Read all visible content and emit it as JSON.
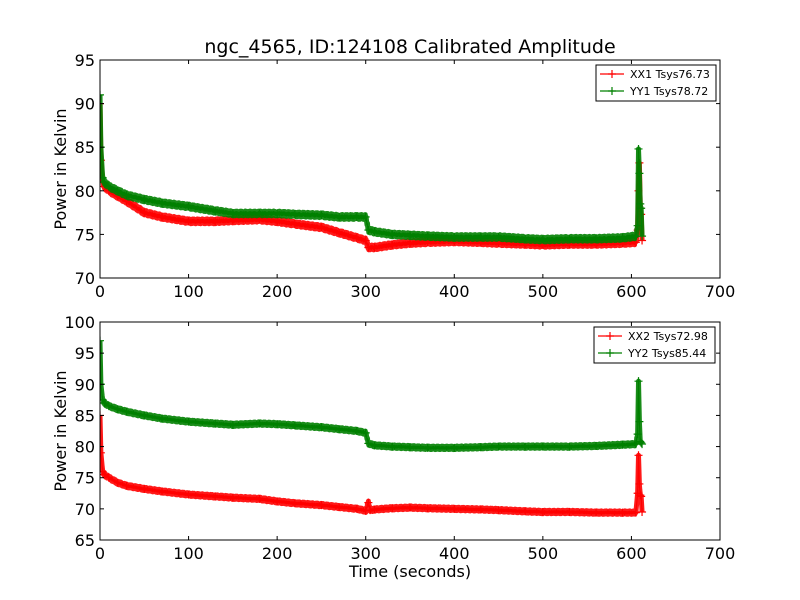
{
  "figure": {
    "title": "ngc_4565, ID:124108 Calibrated Amplitude"
  },
  "chart_data": [
    {
      "type": "line",
      "xlabel": "",
      "ylabel": "Power in Kelvin",
      "xlim": [
        0,
        700
      ],
      "ylim": [
        70,
        95
      ],
      "xticks": [
        0,
        100,
        200,
        300,
        400,
        500,
        600,
        700
      ],
      "yticks": [
        70,
        75,
        80,
        85,
        90,
        95
      ],
      "legend_position": "top-right",
      "markers": "+",
      "series": [
        {
          "name": "XX1 Tsys76.73",
          "color": "#ff0000",
          "x": [
            0,
            1,
            3,
            5,
            10,
            20,
            30,
            50,
            70,
            100,
            130,
            150,
            180,
            200,
            220,
            250,
            270,
            290,
            300,
            303,
            310,
            330,
            350,
            370,
            400,
            430,
            450,
            480,
            500,
            530,
            560,
            590,
            605,
            607,
            608,
            609,
            610,
            611,
            612
          ],
          "y": [
            90,
            83.5,
            81,
            80.5,
            80,
            79.4,
            78.8,
            77.5,
            77.0,
            76.5,
            76.5,
            76.6,
            76.7,
            76.5,
            76.2,
            75.8,
            75.2,
            74.6,
            74.3,
            73.5,
            73.5,
            73.8,
            74.0,
            74.1,
            74.2,
            74.1,
            74.0,
            73.9,
            73.8,
            73.9,
            73.9,
            74.0,
            74.1,
            75.5,
            80.0,
            83.2,
            78.0,
            77.3,
            74.3
          ]
        },
        {
          "name": "YY1 Tsys78.72",
          "color": "#008000",
          "x": [
            0,
            1,
            3,
            5,
            10,
            20,
            30,
            50,
            70,
            100,
            130,
            150,
            180,
            200,
            220,
            250,
            270,
            290,
            300,
            303,
            310,
            330,
            350,
            370,
            400,
            430,
            450,
            480,
            500,
            530,
            560,
            590,
            605,
            607,
            608,
            609,
            610,
            611,
            612
          ],
          "y": [
            91,
            85,
            81.5,
            81,
            80.5,
            80,
            79.5,
            79,
            78.6,
            78.2,
            77.7,
            77.4,
            77.4,
            77.4,
            77.3,
            77.2,
            77.0,
            77.0,
            77.0,
            75.5,
            75.3,
            75.0,
            74.9,
            74.8,
            74.7,
            74.7,
            74.7,
            74.5,
            74.4,
            74.5,
            74.5,
            74.6,
            74.8,
            76.0,
            84.8,
            82.0,
            78.5,
            78.0,
            74.8
          ]
        }
      ]
    },
    {
      "type": "line",
      "xlabel": "Time (seconds)",
      "ylabel": "Power in Kelvin",
      "xlim": [
        0,
        700
      ],
      "ylim": [
        65,
        100
      ],
      "xticks": [
        0,
        100,
        200,
        300,
        400,
        500,
        600,
        700
      ],
      "yticks": [
        65,
        70,
        75,
        80,
        85,
        90,
        95,
        100
      ],
      "legend_position": "top-right",
      "markers": "+",
      "series": [
        {
          "name": "XX2 Tsys72.98",
          "color": "#ff0000",
          "x": [
            0,
            1,
            3,
            5,
            10,
            20,
            30,
            50,
            70,
            100,
            130,
            150,
            180,
            200,
            220,
            250,
            270,
            290,
            300,
            303,
            305,
            310,
            330,
            350,
            370,
            400,
            430,
            450,
            480,
            500,
            530,
            560,
            590,
            605,
            607,
            608,
            609,
            610,
            611,
            612
          ],
          "y": [
            85,
            79,
            76,
            75.5,
            75,
            74.2,
            73.7,
            73.2,
            72.8,
            72.3,
            72.0,
            71.8,
            71.6,
            71.2,
            70.9,
            70.6,
            70.3,
            70.0,
            69.7,
            71.0,
            69.8,
            69.9,
            70.1,
            70.2,
            70.1,
            70.0,
            69.9,
            69.8,
            69.6,
            69.5,
            69.5,
            69.4,
            69.4,
            69.4,
            72.5,
            78.6,
            74.0,
            72.2,
            72.0,
            69.5
          ]
        },
        {
          "name": "YY2 Tsys85.44",
          "color": "#008000",
          "x": [
            0,
            1,
            3,
            5,
            10,
            20,
            30,
            50,
            70,
            100,
            130,
            150,
            180,
            200,
            220,
            250,
            270,
            290,
            300,
            303,
            310,
            330,
            350,
            370,
            400,
            430,
            450,
            480,
            500,
            530,
            560,
            590,
            605,
            607,
            608,
            609,
            610,
            611,
            612
          ],
          "y": [
            97,
            90,
            87.5,
            87,
            86.5,
            86,
            85.6,
            85,
            84.5,
            84,
            83.7,
            83.5,
            83.7,
            83.6,
            83.4,
            83.1,
            82.8,
            82.5,
            82.2,
            80.5,
            80.2,
            80.0,
            79.9,
            79.8,
            79.8,
            79.9,
            80.0,
            80.0,
            80.0,
            80.0,
            80.1,
            80.3,
            80.4,
            82.0,
            90.5,
            84.0,
            80.8,
            80.6,
            80.4
          ]
        }
      ]
    }
  ]
}
